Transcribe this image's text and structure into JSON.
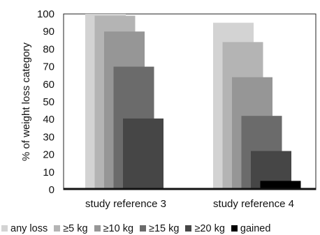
{
  "chart_data": {
    "type": "bar",
    "ylabel": "% of weight loss category",
    "ylim": [
      0,
      100
    ],
    "yticks": [
      "0",
      "10",
      "20",
      "30",
      "40",
      "50",
      "60",
      "70",
      "80",
      "90",
      "100"
    ],
    "categories": [
      "study reference 3",
      "study reference 4"
    ],
    "series": [
      {
        "name": "any loss",
        "color": "#d3d3d3",
        "values": [
          100,
          95
        ]
      },
      {
        "name": "≥5 kg",
        "color": "#b4b4b4",
        "values": [
          99,
          84
        ]
      },
      {
        "name": "≥10 kg",
        "color": "#969696",
        "values": [
          90,
          64
        ]
      },
      {
        "name": "≥15 kg",
        "color": "#6b6b6b",
        "values": [
          70,
          42
        ]
      },
      {
        "name": "≥20 kg",
        "color": "#464646",
        "values": [
          40.5,
          22
        ]
      },
      {
        "name": "gained",
        "color": "#000000",
        "values": [
          0,
          5
        ]
      }
    ],
    "grid": false,
    "legend_position": "bottom"
  }
}
